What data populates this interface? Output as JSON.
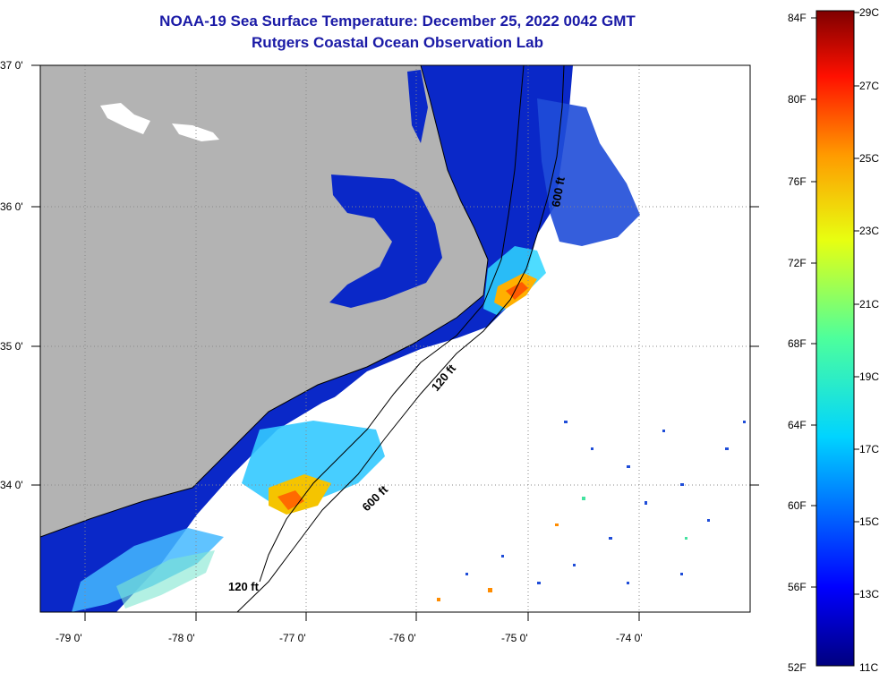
{
  "title": "NOAA-19 Sea Surface Temperature:  December 25, 2022 0042 GMT",
  "subtitle": "Rutgers Coastal Ocean Observation Lab",
  "lat_labels": [
    "37 0'",
    "36 0'",
    "35 0'",
    "34 0'"
  ],
  "lon_labels": [
    "-79 0'",
    "-78 0'",
    "-77 0'",
    "-76 0'",
    "-75 0'",
    "-74 0'"
  ],
  "isobaths": [
    "600 ft",
    "120 ft",
    "600 ft",
    "120 ft"
  ],
  "colorbar": {
    "f_labels": [
      "84F",
      "80F",
      "76F",
      "72F",
      "68F",
      "64F",
      "60F",
      "56F",
      "52F"
    ],
    "c_labels": [
      "29C",
      "27C",
      "25C",
      "23C",
      "21C",
      "19C",
      "17C",
      "15C",
      "13C",
      "11C"
    ]
  },
  "colors": {
    "land": "#b3b3b3",
    "title": "#1a1aa6",
    "cold": "#0a28c8"
  }
}
